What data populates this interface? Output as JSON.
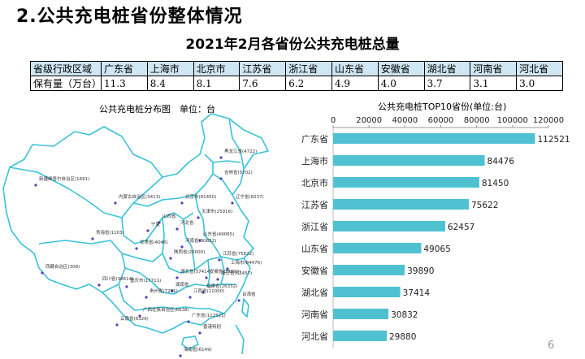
{
  "section_title": "2.公共充电桩省份整体情况",
  "table": {
    "title": "2021年2月各省份公共充电桩总量",
    "header_label": "省级行政区域",
    "row_label": "保有量（万台）",
    "provinces": [
      "广东省",
      "上海市",
      "北京市",
      "江苏省",
      "浙江省",
      "山东省",
      "安徽省",
      "湖北省",
      "河南省",
      "河北省"
    ],
    "values": [
      "11.3",
      "8.4",
      "8.1",
      "7.6",
      "6.2",
      "4.9",
      "4.0",
      "3.7",
      "3.1",
      "3.0"
    ]
  },
  "map": {
    "title": "公共充电桩分布图　单位：台",
    "labels": [
      "黑龙江省(4722)",
      "吉林省(5702)",
      "辽宁省(8237)",
      "内蒙古自治区(3413)",
      "北京市(81450)",
      "天津市(25916)",
      "新疆维吾尔自治区(1691)",
      "山西省",
      "河北省",
      "山东省(49065)",
      "宁夏",
      "甘肃省(4046)",
      "青海省(1103)",
      "陕西省(26000)",
      "河南省(30832)",
      "江苏省(75622)",
      "安徽省(39890)",
      "上海市(84476)",
      "西藏自治区(308)",
      "四川省(38614)",
      "湖北省(37414)",
      "浙江省(62457)",
      "重庆市(17711)",
      "贵州省(7201)",
      "湖南省",
      "江西省(11000)",
      "福建省(26332)",
      "云南省(6329)",
      "广西壮族自治区(6638)",
      "广东省(112521)",
      "台湾省",
      "香港特别",
      "海南省(6149)"
    ]
  },
  "chart_data": {
    "type": "bar",
    "orientation": "horizontal",
    "title": "公共充电桩TOP10省份(单位:台)",
    "categories": [
      "广东省",
      "上海市",
      "北京市",
      "江苏省",
      "浙江省",
      "山东省",
      "安徽省",
      "湖北省",
      "河南省",
      "河北省"
    ],
    "values": [
      112521,
      84476,
      81450,
      75622,
      62457,
      49065,
      39890,
      37414,
      30832,
      29880
    ],
    "xlim": [
      0,
      120000
    ],
    "x_ticks": [
      "0",
      "20000",
      "40000",
      "60000",
      "80000",
      "100000",
      "120000"
    ],
    "axis_position": "top",
    "bar_color": "#4fc1d1",
    "grid": false,
    "legend": "none"
  },
  "colors": {
    "table_header_bg": "#cfe6f3",
    "map_stroke": "#39c2d8",
    "map_dot": "#5b3bb5",
    "bar": "#4fc1d1"
  },
  "page_number": "6"
}
